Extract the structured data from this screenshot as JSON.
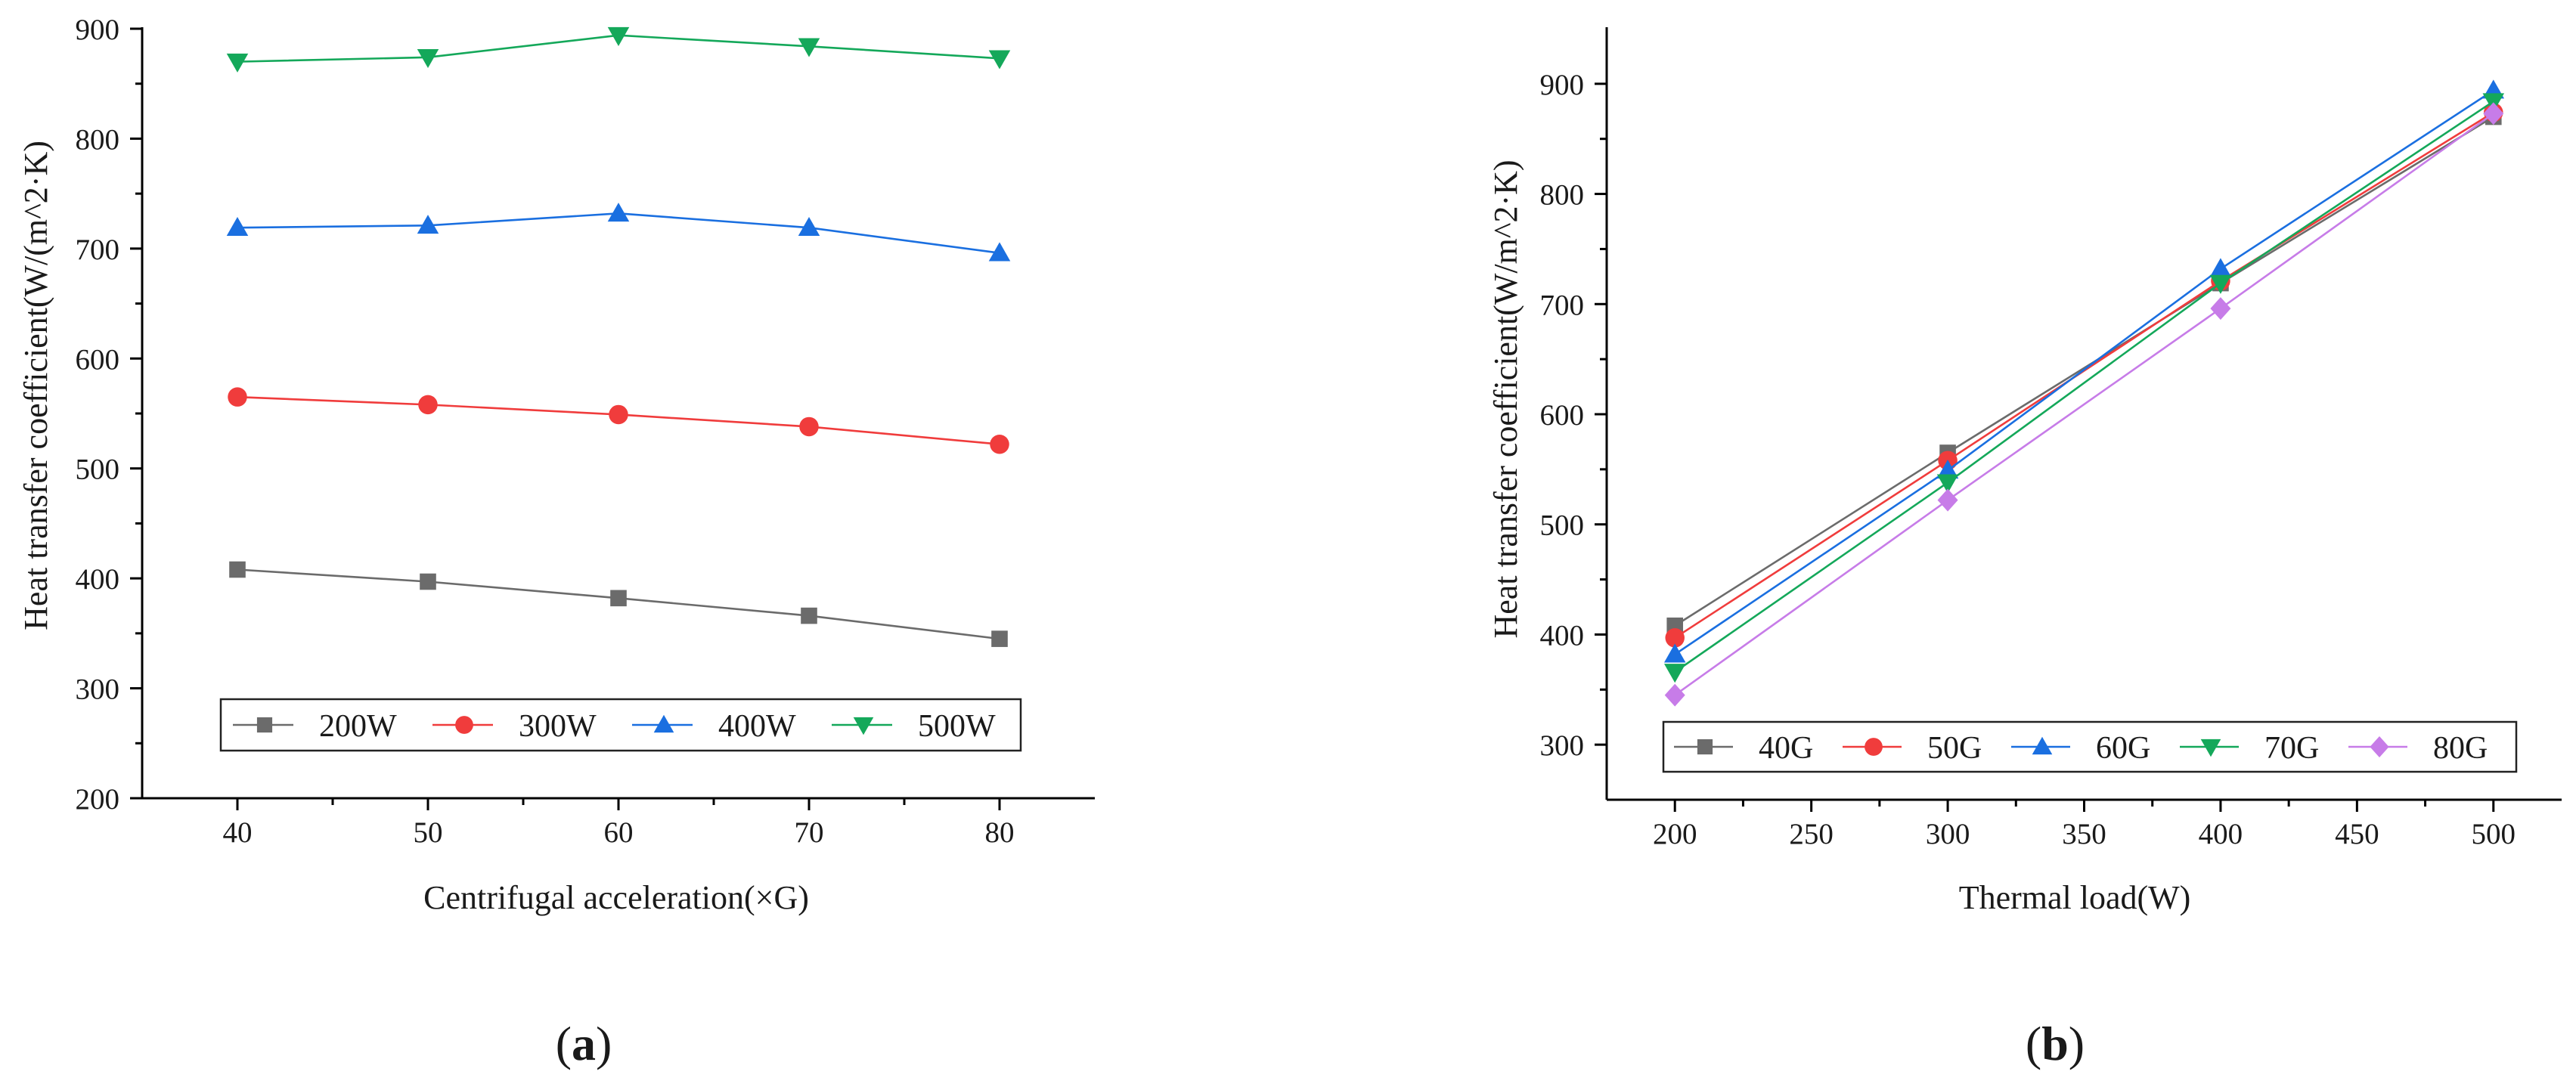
{
  "chart_data": [
    {
      "type": "line",
      "panel_label": "(a)",
      "panel_letter": "a",
      "xlabel": "Centrifugal acceleration(×G)",
      "ylabel": "Heat transfer coefficient(W/(m^2·K)",
      "xlim": [
        35,
        85
      ],
      "ylim": [
        200,
        900
      ],
      "xticks": [
        40,
        50,
        60,
        70,
        80
      ],
      "yticks": [
        200,
        300,
        400,
        500,
        600,
        700,
        800,
        900
      ],
      "x": [
        40,
        50,
        60,
        70,
        80
      ],
      "legend_position": "bottom-center",
      "series": [
        {
          "name": "200W",
          "values": [
            408,
            397,
            382,
            366,
            345
          ],
          "color": "#6b6b6b",
          "marker": "square"
        },
        {
          "name": "300W",
          "values": [
            565,
            558,
            549,
            538,
            522
          ],
          "color": "#f03c3c",
          "marker": "circle"
        },
        {
          "name": "400W",
          "values": [
            719,
            721,
            732,
            719,
            696
          ],
          "color": "#1a6fe0",
          "marker": "triangle-up"
        },
        {
          "name": "500W",
          "values": [
            870,
            874,
            894,
            884,
            873
          ],
          "color": "#14a85a",
          "marker": "triangle-down"
        }
      ]
    },
    {
      "type": "line",
      "panel_label": "(b)",
      "panel_letter": "b",
      "xlabel": "Thermal load(W)",
      "ylabel": "Heat transfer coefficient(W/m^2·K)",
      "xlim": [
        175,
        525
      ],
      "ylim": [
        250,
        950
      ],
      "xticks": [
        200,
        250,
        300,
        350,
        400,
        450,
        500
      ],
      "yticks": [
        300,
        400,
        500,
        600,
        700,
        800,
        900
      ],
      "x": [
        200,
        300,
        400,
        500
      ],
      "legend_position": "bottom-center",
      "series": [
        {
          "name": "40G",
          "values": [
            408,
            565,
            719,
            870
          ],
          "color": "#6b6b6b",
          "marker": "square"
        },
        {
          "name": "50G",
          "values": [
            397,
            558,
            721,
            874
          ],
          "color": "#f03c3c",
          "marker": "circle"
        },
        {
          "name": "60G",
          "values": [
            382,
            549,
            732,
            894
          ],
          "color": "#1a6fe0",
          "marker": "triangle-up"
        },
        {
          "name": "70G",
          "values": [
            366,
            538,
            719,
            884
          ],
          "color": "#14a85a",
          "marker": "triangle-down"
        },
        {
          "name": "80G",
          "values": [
            345,
            522,
            696,
            873
          ],
          "color": "#c77ce8",
          "marker": "diamond"
        }
      ]
    }
  ]
}
